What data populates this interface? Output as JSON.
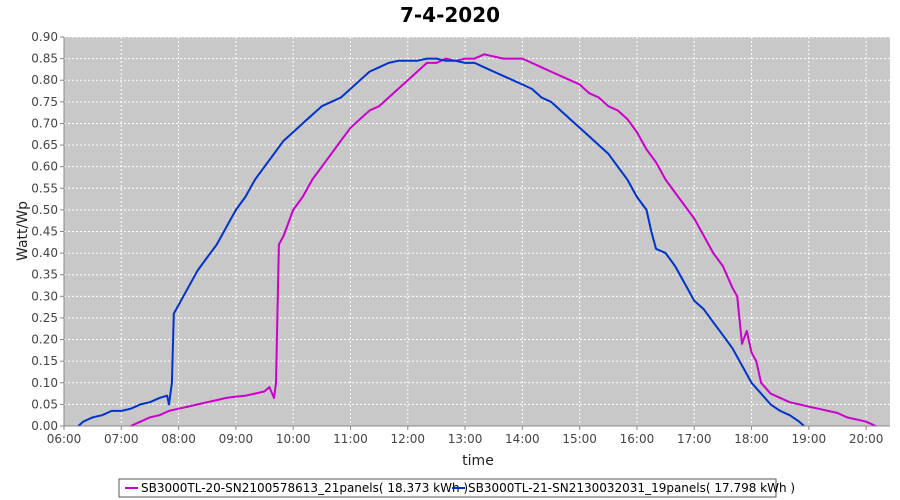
{
  "chart_data": {
    "type": "line",
    "title": "7-4-2020",
    "xlabel": "time",
    "ylabel": "Watt/Wp",
    "xlim": [
      "06:00",
      "20:25"
    ],
    "ylim": [
      0,
      0.9
    ],
    "grid": true,
    "legend_position": "bottom",
    "x_ticks": [
      "06:00",
      "07:00",
      "08:00",
      "09:00",
      "10:00",
      "11:00",
      "12:00",
      "13:00",
      "14:00",
      "15:00",
      "16:00",
      "17:00",
      "18:00",
      "19:00",
      "20:00"
    ],
    "y_ticks": [
      "0.00",
      "0.05",
      "0.10",
      "0.15",
      "0.20",
      "0.25",
      "0.30",
      "0.35",
      "0.40",
      "0.45",
      "0.50",
      "0.55",
      "0.60",
      "0.65",
      "0.70",
      "0.75",
      "0.80",
      "0.85",
      "0.90"
    ],
    "series": [
      {
        "name": "SB3000TL-20-SN2100578613_21panels",
        "legend_label": "SB3000TL-20-SN2100578613_21panels( 18.373 kWh )",
        "color": "#cc00cc",
        "points": [
          [
            "07:10",
            0.0
          ],
          [
            "07:20",
            0.01
          ],
          [
            "07:30",
            0.02
          ],
          [
            "07:40",
            0.025
          ],
          [
            "07:50",
            0.035
          ],
          [
            "08:00",
            0.04
          ],
          [
            "08:10",
            0.045
          ],
          [
            "08:20",
            0.05
          ],
          [
            "08:30",
            0.055
          ],
          [
            "08:40",
            0.06
          ],
          [
            "08:50",
            0.065
          ],
          [
            "09:00",
            0.068
          ],
          [
            "09:10",
            0.07
          ],
          [
            "09:20",
            0.075
          ],
          [
            "09:30",
            0.08
          ],
          [
            "09:35",
            0.09
          ],
          [
            "09:40",
            0.065
          ],
          [
            "09:42",
            0.1
          ],
          [
            "09:45",
            0.42
          ],
          [
            "09:50",
            0.44
          ],
          [
            "09:55",
            0.47
          ],
          [
            "10:00",
            0.5
          ],
          [
            "10:10",
            0.53
          ],
          [
            "10:20",
            0.57
          ],
          [
            "10:30",
            0.6
          ],
          [
            "10:40",
            0.63
          ],
          [
            "10:50",
            0.66
          ],
          [
            "11:00",
            0.69
          ],
          [
            "11:10",
            0.71
          ],
          [
            "11:20",
            0.73
          ],
          [
            "11:30",
            0.74
          ],
          [
            "11:40",
            0.76
          ],
          [
            "11:50",
            0.78
          ],
          [
            "12:00",
            0.8
          ],
          [
            "12:10",
            0.82
          ],
          [
            "12:20",
            0.84
          ],
          [
            "12:30",
            0.84
          ],
          [
            "12:40",
            0.85
          ],
          [
            "12:50",
            0.845
          ],
          [
            "13:00",
            0.85
          ],
          [
            "13:10",
            0.85
          ],
          [
            "13:20",
            0.86
          ],
          [
            "13:30",
            0.855
          ],
          [
            "13:40",
            0.85
          ],
          [
            "13:50",
            0.85
          ],
          [
            "14:00",
            0.85
          ],
          [
            "14:10",
            0.84
          ],
          [
            "14:20",
            0.83
          ],
          [
            "14:30",
            0.82
          ],
          [
            "14:40",
            0.81
          ],
          [
            "14:50",
            0.8
          ],
          [
            "15:00",
            0.79
          ],
          [
            "15:10",
            0.77
          ],
          [
            "15:20",
            0.76
          ],
          [
            "15:30",
            0.74
          ],
          [
            "15:40",
            0.73
          ],
          [
            "15:50",
            0.71
          ],
          [
            "16:00",
            0.68
          ],
          [
            "16:10",
            0.64
          ],
          [
            "16:20",
            0.61
          ],
          [
            "16:30",
            0.57
          ],
          [
            "16:40",
            0.54
          ],
          [
            "16:50",
            0.51
          ],
          [
            "17:00",
            0.48
          ],
          [
            "17:10",
            0.44
          ],
          [
            "17:20",
            0.4
          ],
          [
            "17:30",
            0.37
          ],
          [
            "17:40",
            0.32
          ],
          [
            "17:45",
            0.3
          ],
          [
            "17:50",
            0.19
          ],
          [
            "17:55",
            0.22
          ],
          [
            "18:00",
            0.17
          ],
          [
            "18:05",
            0.15
          ],
          [
            "18:10",
            0.1
          ],
          [
            "18:20",
            0.075
          ],
          [
            "18:30",
            0.065
          ],
          [
            "18:40",
            0.055
          ],
          [
            "18:50",
            0.05
          ],
          [
            "19:00",
            0.045
          ],
          [
            "19:10",
            0.04
          ],
          [
            "19:20",
            0.035
          ],
          [
            "19:30",
            0.03
          ],
          [
            "19:40",
            0.02
          ],
          [
            "19:50",
            0.015
          ],
          [
            "20:00",
            0.01
          ],
          [
            "20:05",
            0.005
          ],
          [
            "20:10",
            0.0
          ]
        ]
      },
      {
        "name": "SB3000TL-21-SN2130032031_19panels",
        "legend_label": "SB3000TL-21-SN2130032031_19panels( 17.798 kWh )",
        "color": "#0033cc",
        "points": [
          [
            "06:15",
            0.0
          ],
          [
            "06:20",
            0.01
          ],
          [
            "06:30",
            0.02
          ],
          [
            "06:40",
            0.025
          ],
          [
            "06:50",
            0.035
          ],
          [
            "07:00",
            0.035
          ],
          [
            "07:10",
            0.04
          ],
          [
            "07:20",
            0.05
          ],
          [
            "07:30",
            0.055
          ],
          [
            "07:40",
            0.065
          ],
          [
            "07:48",
            0.07
          ],
          [
            "07:50",
            0.05
          ],
          [
            "07:53",
            0.1
          ],
          [
            "07:55",
            0.26
          ],
          [
            "08:00",
            0.28
          ],
          [
            "08:10",
            0.32
          ],
          [
            "08:20",
            0.36
          ],
          [
            "08:30",
            0.39
          ],
          [
            "08:40",
            0.42
          ],
          [
            "08:50",
            0.46
          ],
          [
            "09:00",
            0.5
          ],
          [
            "09:10",
            0.53
          ],
          [
            "09:20",
            0.57
          ],
          [
            "09:30",
            0.6
          ],
          [
            "09:40",
            0.63
          ],
          [
            "09:50",
            0.66
          ],
          [
            "10:00",
            0.68
          ],
          [
            "10:10",
            0.7
          ],
          [
            "10:20",
            0.72
          ],
          [
            "10:30",
            0.74
          ],
          [
            "10:40",
            0.75
          ],
          [
            "10:50",
            0.76
          ],
          [
            "11:00",
            0.78
          ],
          [
            "11:10",
            0.8
          ],
          [
            "11:20",
            0.82
          ],
          [
            "11:30",
            0.83
          ],
          [
            "11:40",
            0.84
          ],
          [
            "11:50",
            0.845
          ],
          [
            "12:00",
            0.845
          ],
          [
            "12:10",
            0.845
          ],
          [
            "12:20",
            0.85
          ],
          [
            "12:30",
            0.85
          ],
          [
            "12:40",
            0.845
          ],
          [
            "12:50",
            0.845
          ],
          [
            "13:00",
            0.84
          ],
          [
            "13:10",
            0.84
          ],
          [
            "13:20",
            0.83
          ],
          [
            "13:30",
            0.82
          ],
          [
            "13:40",
            0.81
          ],
          [
            "13:50",
            0.8
          ],
          [
            "14:00",
            0.79
          ],
          [
            "14:10",
            0.78
          ],
          [
            "14:20",
            0.76
          ],
          [
            "14:30",
            0.75
          ],
          [
            "14:40",
            0.73
          ],
          [
            "14:50",
            0.71
          ],
          [
            "15:00",
            0.69
          ],
          [
            "15:10",
            0.67
          ],
          [
            "15:20",
            0.65
          ],
          [
            "15:30",
            0.63
          ],
          [
            "15:40",
            0.6
          ],
          [
            "15:50",
            0.57
          ],
          [
            "16:00",
            0.53
          ],
          [
            "16:10",
            0.5
          ],
          [
            "16:15",
            0.45
          ],
          [
            "16:20",
            0.41
          ],
          [
            "16:30",
            0.4
          ],
          [
            "16:40",
            0.37
          ],
          [
            "16:50",
            0.33
          ],
          [
            "17:00",
            0.29
          ],
          [
            "17:10",
            0.27
          ],
          [
            "17:20",
            0.24
          ],
          [
            "17:30",
            0.21
          ],
          [
            "17:40",
            0.18
          ],
          [
            "17:50",
            0.14
          ],
          [
            "18:00",
            0.1
          ],
          [
            "18:10",
            0.075
          ],
          [
            "18:20",
            0.05
          ],
          [
            "18:30",
            0.035
          ],
          [
            "18:40",
            0.025
          ],
          [
            "18:50",
            0.01
          ],
          [
            "18:55",
            0.0
          ]
        ]
      }
    ]
  }
}
